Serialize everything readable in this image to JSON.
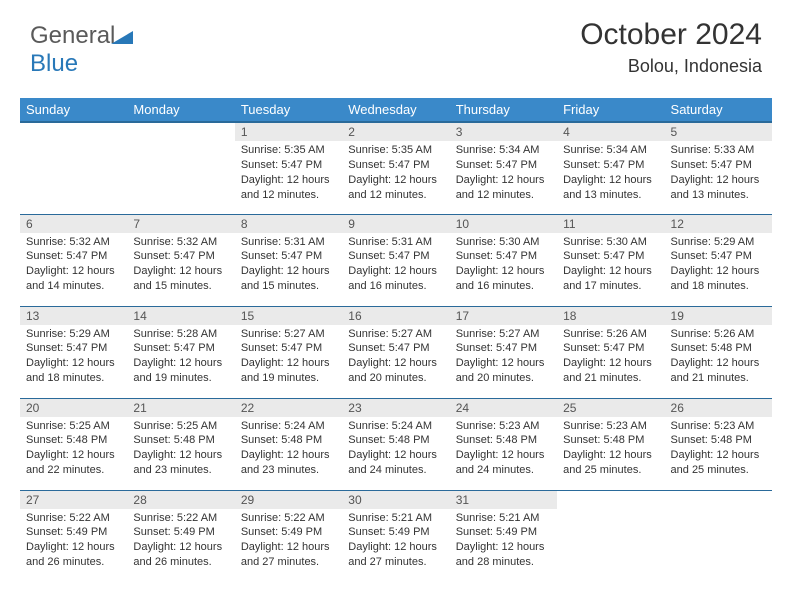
{
  "brand": {
    "part1": "General",
    "part2": "Blue"
  },
  "header": {
    "month": "October 2024",
    "location": "Bolou, Indonesia"
  },
  "colors": {
    "header_bg": "#3a89c9",
    "header_border": "#2a6a9a",
    "daynum_bg": "#eaeaea",
    "text": "#333333"
  },
  "weekdays": [
    "Sunday",
    "Monday",
    "Tuesday",
    "Wednesday",
    "Thursday",
    "Friday",
    "Saturday"
  ],
  "startOffset": 2,
  "days": [
    {
      "n": 1,
      "rise": "5:35 AM",
      "set": "5:47 PM",
      "dl": "12 hours and 12 minutes."
    },
    {
      "n": 2,
      "rise": "5:35 AM",
      "set": "5:47 PM",
      "dl": "12 hours and 12 minutes."
    },
    {
      "n": 3,
      "rise": "5:34 AM",
      "set": "5:47 PM",
      "dl": "12 hours and 12 minutes."
    },
    {
      "n": 4,
      "rise": "5:34 AM",
      "set": "5:47 PM",
      "dl": "12 hours and 13 minutes."
    },
    {
      "n": 5,
      "rise": "5:33 AM",
      "set": "5:47 PM",
      "dl": "12 hours and 13 minutes."
    },
    {
      "n": 6,
      "rise": "5:32 AM",
      "set": "5:47 PM",
      "dl": "12 hours and 14 minutes."
    },
    {
      "n": 7,
      "rise": "5:32 AM",
      "set": "5:47 PM",
      "dl": "12 hours and 15 minutes."
    },
    {
      "n": 8,
      "rise": "5:31 AM",
      "set": "5:47 PM",
      "dl": "12 hours and 15 minutes."
    },
    {
      "n": 9,
      "rise": "5:31 AM",
      "set": "5:47 PM",
      "dl": "12 hours and 16 minutes."
    },
    {
      "n": 10,
      "rise": "5:30 AM",
      "set": "5:47 PM",
      "dl": "12 hours and 16 minutes."
    },
    {
      "n": 11,
      "rise": "5:30 AM",
      "set": "5:47 PM",
      "dl": "12 hours and 17 minutes."
    },
    {
      "n": 12,
      "rise": "5:29 AM",
      "set": "5:47 PM",
      "dl": "12 hours and 18 minutes."
    },
    {
      "n": 13,
      "rise": "5:29 AM",
      "set": "5:47 PM",
      "dl": "12 hours and 18 minutes."
    },
    {
      "n": 14,
      "rise": "5:28 AM",
      "set": "5:47 PM",
      "dl": "12 hours and 19 minutes."
    },
    {
      "n": 15,
      "rise": "5:27 AM",
      "set": "5:47 PM",
      "dl": "12 hours and 19 minutes."
    },
    {
      "n": 16,
      "rise": "5:27 AM",
      "set": "5:47 PM",
      "dl": "12 hours and 20 minutes."
    },
    {
      "n": 17,
      "rise": "5:27 AM",
      "set": "5:47 PM",
      "dl": "12 hours and 20 minutes."
    },
    {
      "n": 18,
      "rise": "5:26 AM",
      "set": "5:47 PM",
      "dl": "12 hours and 21 minutes."
    },
    {
      "n": 19,
      "rise": "5:26 AM",
      "set": "5:48 PM",
      "dl": "12 hours and 21 minutes."
    },
    {
      "n": 20,
      "rise": "5:25 AM",
      "set": "5:48 PM",
      "dl": "12 hours and 22 minutes."
    },
    {
      "n": 21,
      "rise": "5:25 AM",
      "set": "5:48 PM",
      "dl": "12 hours and 23 minutes."
    },
    {
      "n": 22,
      "rise": "5:24 AM",
      "set": "5:48 PM",
      "dl": "12 hours and 23 minutes."
    },
    {
      "n": 23,
      "rise": "5:24 AM",
      "set": "5:48 PM",
      "dl": "12 hours and 24 minutes."
    },
    {
      "n": 24,
      "rise": "5:23 AM",
      "set": "5:48 PM",
      "dl": "12 hours and 24 minutes."
    },
    {
      "n": 25,
      "rise": "5:23 AM",
      "set": "5:48 PM",
      "dl": "12 hours and 25 minutes."
    },
    {
      "n": 26,
      "rise": "5:23 AM",
      "set": "5:48 PM",
      "dl": "12 hours and 25 minutes."
    },
    {
      "n": 27,
      "rise": "5:22 AM",
      "set": "5:49 PM",
      "dl": "12 hours and 26 minutes."
    },
    {
      "n": 28,
      "rise": "5:22 AM",
      "set": "5:49 PM",
      "dl": "12 hours and 26 minutes."
    },
    {
      "n": 29,
      "rise": "5:22 AM",
      "set": "5:49 PM",
      "dl": "12 hours and 27 minutes."
    },
    {
      "n": 30,
      "rise": "5:21 AM",
      "set": "5:49 PM",
      "dl": "12 hours and 27 minutes."
    },
    {
      "n": 31,
      "rise": "5:21 AM",
      "set": "5:49 PM",
      "dl": "12 hours and 28 minutes."
    }
  ],
  "labels": {
    "sunrise": "Sunrise: ",
    "sunset": "Sunset: ",
    "daylight": "Daylight: "
  }
}
